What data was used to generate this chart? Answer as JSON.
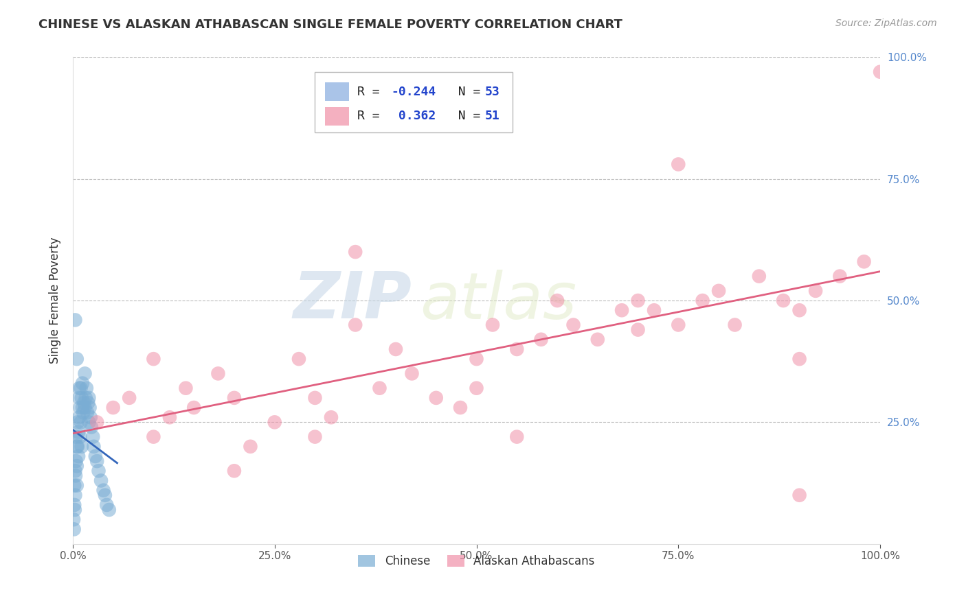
{
  "title": "CHINESE VS ALASKAN ATHABASCAN SINGLE FEMALE POVERTY CORRELATION CHART",
  "source": "Source: ZipAtlas.com",
  "ylabel": "Single Female Poverty",
  "bottom_legend": [
    "Chinese",
    "Alaskan Athabascans"
  ],
  "blue_color": "#7aadd4",
  "pink_color": "#f090a8",
  "blue_line_color": "#3366bb",
  "pink_line_color": "#e06080",
  "background_color": "#ffffff",
  "grid_color": "#bbbbbb",
  "watermark_color": "#d8e8f0",
  "R_chinese": -0.244,
  "N_chinese": 53,
  "R_athabascan": 0.362,
  "N_athabascan": 51,
  "chinese_x": [
    0.1,
    0.15,
    0.2,
    0.2,
    0.25,
    0.3,
    0.3,
    0.35,
    0.4,
    0.4,
    0.5,
    0.5,
    0.5,
    0.6,
    0.6,
    0.7,
    0.7,
    0.8,
    0.8,
    0.9,
    0.9,
    1.0,
    1.0,
    1.1,
    1.1,
    1.2,
    1.2,
    1.3,
    1.4,
    1.5,
    1.5,
    1.6,
    1.7,
    1.8,
    1.9,
    2.0,
    2.0,
    2.1,
    2.2,
    2.3,
    2.5,
    2.6,
    2.8,
    3.0,
    3.2,
    3.5,
    3.8,
    4.0,
    4.2,
    4.5,
    0.3,
    0.5,
    0.8
  ],
  "chinese_y": [
    5,
    3,
    8,
    12,
    7,
    15,
    10,
    14,
    17,
    22,
    20,
    16,
    12,
    25,
    20,
    18,
    23,
    26,
    30,
    28,
    22,
    32,
    25,
    30,
    20,
    28,
    33,
    27,
    29,
    35,
    28,
    30,
    32,
    27,
    29,
    30,
    25,
    28,
    26,
    24,
    22,
    20,
    18,
    17,
    15,
    13,
    11,
    10,
    8,
    7,
    46,
    38,
    32
  ],
  "athabascan_x": [
    3,
    5,
    7,
    10,
    10,
    12,
    14,
    15,
    18,
    20,
    22,
    25,
    28,
    30,
    30,
    32,
    35,
    38,
    40,
    42,
    45,
    48,
    50,
    50,
    52,
    55,
    58,
    60,
    62,
    65,
    68,
    70,
    70,
    72,
    75,
    78,
    80,
    82,
    85,
    88,
    90,
    90,
    92,
    95,
    98,
    100,
    20,
    35,
    55,
    75,
    90
  ],
  "athabascan_y": [
    25,
    28,
    30,
    38,
    22,
    26,
    32,
    28,
    35,
    30,
    20,
    25,
    38,
    30,
    22,
    26,
    45,
    32,
    40,
    35,
    30,
    28,
    38,
    32,
    45,
    40,
    42,
    50,
    45,
    42,
    48,
    50,
    44,
    48,
    45,
    50,
    52,
    45,
    55,
    50,
    48,
    38,
    52,
    55,
    58,
    97,
    15,
    60,
    22,
    78,
    10
  ]
}
